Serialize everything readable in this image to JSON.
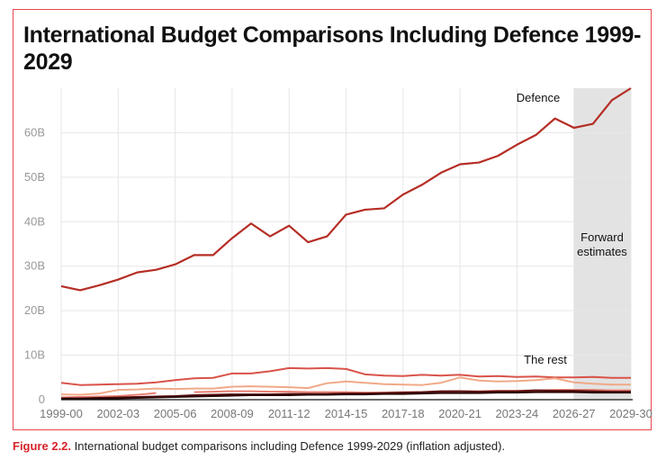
{
  "title": "International Budget Comparisons Including Defence 1999-2029",
  "caption": {
    "figure_label": "Figure 2.2.",
    "text": " International budget comparisons including Defence 1999-2029 (inflation adjusted)."
  },
  "colors": {
    "defence": "#b52e25",
    "rest_1": "#d9534a",
    "rest_2": "#f0a988",
    "rest_3": "#e77f72",
    "rest_4": "#5a0d0d",
    "rest_5": "#2a0606",
    "shade": "#e3e3e3",
    "frame": "#e8474c"
  },
  "chart_data": {
    "type": "line",
    "x": [
      "1999-00",
      "2000-01",
      "2001-02",
      "2002-03",
      "2003-04",
      "2004-05",
      "2005-06",
      "2006-07",
      "2007-08",
      "2008-09",
      "2009-10",
      "2010-11",
      "2011-12",
      "2012-13",
      "2013-14",
      "2014-15",
      "2015-16",
      "2016-17",
      "2017-18",
      "2018-19",
      "2019-20",
      "2020-21",
      "2021-22",
      "2022-23",
      "2023-24",
      "2024-25",
      "2025-26",
      "2026-27",
      "2027-28",
      "2028-29",
      "2029-30"
    ],
    "x_tick_labels": [
      "1999-00",
      "2002-03",
      "2005-06",
      "2008-09",
      "2011-12",
      "2014-15",
      "2017-18",
      "2020-21",
      "2023-24",
      "2026-27",
      "2029-30"
    ],
    "y_tick_labels": [
      "0",
      "10B",
      "20B",
      "30B",
      "40B",
      "50B",
      "60B"
    ],
    "y_ticks": [
      0,
      10,
      20,
      30,
      40,
      50,
      60
    ],
    "ylim": [
      0,
      70
    ],
    "grid": true,
    "shaded_region": {
      "from": "2026-27",
      "to": "2029-30",
      "label_line1": "Forward",
      "label_line2": "estimates"
    },
    "annotations": {
      "defence_label": "Defence",
      "rest_label": "The rest"
    },
    "series": [
      {
        "key": "defence",
        "values": [
          25.5,
          24.6,
          25.7,
          27.0,
          28.6,
          29.2,
          30.4,
          32.5,
          32.5,
          36.3,
          39.6,
          36.7,
          39.1,
          35.4,
          36.7,
          41.6,
          42.7,
          43.0,
          46.1,
          48.3,
          51.0,
          52.9,
          53.3,
          54.8,
          57.3,
          59.5,
          63.2,
          61.1,
          62.0,
          67.3,
          70.0
        ]
      },
      {
        "key": "rest_1",
        "values": [
          3.8,
          3.3,
          3.4,
          3.5,
          3.6,
          3.9,
          4.4,
          4.8,
          4.9,
          5.9,
          5.9,
          6.4,
          7.1,
          7.0,
          7.1,
          6.9,
          5.7,
          5.4,
          5.3,
          5.6,
          5.4,
          5.6,
          5.2,
          5.3,
          5.1,
          5.2,
          5.0,
          5.0,
          5.1,
          4.9,
          4.9
        ]
      },
      {
        "key": "rest_2",
        "values": [
          1.2,
          1.1,
          1.4,
          2.2,
          2.3,
          2.5,
          2.4,
          2.5,
          2.5,
          2.9,
          3.0,
          2.9,
          2.8,
          2.6,
          3.7,
          4.1,
          3.8,
          3.5,
          3.4,
          3.3,
          3.8,
          5.0,
          4.3,
          4.1,
          4.2,
          4.4,
          4.8,
          3.9,
          3.6,
          3.4,
          3.4
        ]
      },
      {
        "key": "rest_3",
        "values": [
          0.5,
          0.6,
          0.7,
          0.8,
          1.1,
          1.5,
          null,
          1.7,
          1.8,
          1.9,
          1.9,
          1.8,
          1.8,
          1.7,
          1.7,
          1.7,
          1.6,
          1.6,
          1.7,
          1.7,
          1.8,
          1.9,
          1.9,
          2.0,
          2.0,
          2.1,
          2.2,
          2.2,
          2.2,
          2.1,
          2.1
        ]
      },
      {
        "key": "rest_4",
        "values": [
          0.3,
          0.3,
          0.4,
          0.5,
          0.6,
          0.7,
          0.8,
          1.0,
          1.1,
          1.2,
          1.2,
          1.2,
          1.3,
          1.3,
          1.3,
          1.4,
          1.4,
          1.5,
          1.6,
          1.7,
          1.9,
          1.9,
          1.8,
          1.9,
          1.9,
          2.1,
          2.0,
          2.0,
          1.9,
          1.8,
          1.8
        ]
      },
      {
        "key": "rest_5",
        "values": [
          0.2,
          0.2,
          0.3,
          0.3,
          0.4,
          0.5,
          0.6,
          0.7,
          0.8,
          0.9,
          1.0,
          1.0,
          1.0,
          1.1,
          1.1,
          1.2,
          1.2,
          1.3,
          1.3,
          1.4,
          1.5,
          1.5,
          1.5,
          1.6,
          1.6,
          1.7,
          1.7,
          1.7,
          1.6,
          1.6,
          1.6
        ]
      }
    ]
  }
}
